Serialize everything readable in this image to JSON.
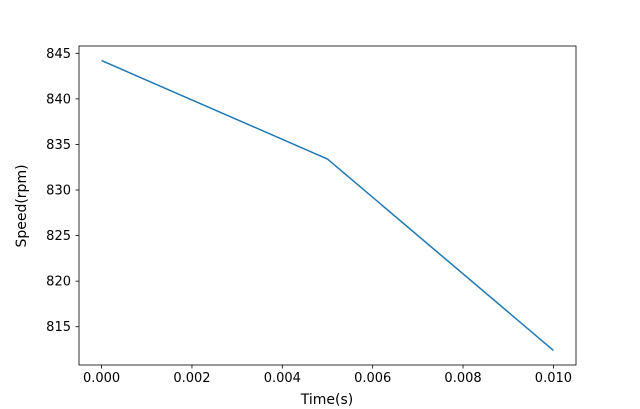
{
  "figure": {
    "background": "#ffffff"
  },
  "chart_data": {
    "type": "line",
    "title": "",
    "xlabel": "Time(s)",
    "ylabel": "Speed(rpm)",
    "x": [
      0.0,
      0.005,
      0.01
    ],
    "y": [
      844.2,
      833.4,
      812.4
    ],
    "line_color": "#1f77b4",
    "line_width": 1.5,
    "axis_color": "#000000",
    "xlim": [
      -0.0005,
      0.0105
    ],
    "ylim": [
      810.8,
      845.8
    ],
    "xticks": [
      0.0,
      0.002,
      0.004,
      0.006,
      0.008,
      0.01
    ],
    "xtick_labels": [
      "0.000",
      "0.002",
      "0.004",
      "0.006",
      "0.008",
      "0.010"
    ],
    "yticks": [
      815,
      820,
      825,
      830,
      835,
      840,
      845
    ],
    "ytick_labels": [
      "815",
      "820",
      "825",
      "830",
      "835",
      "840",
      "845"
    ],
    "grid": false
  }
}
